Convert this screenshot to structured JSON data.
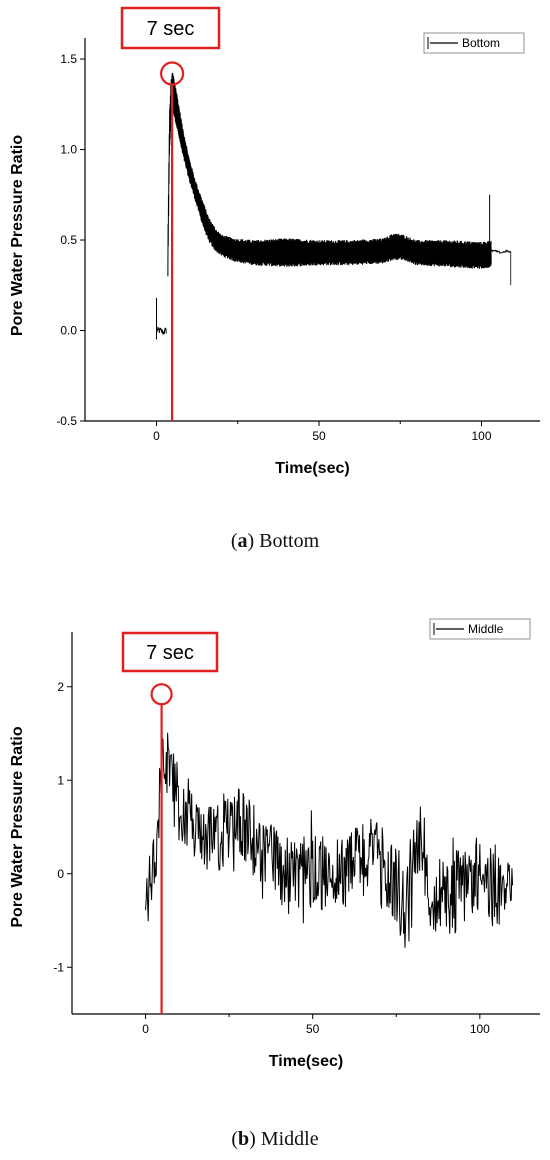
{
  "chart_data": [
    {
      "id": "a",
      "type": "line",
      "title": "",
      "xlabel": "Time(sec)",
      "ylabel": "Pore Water Pressure Ratio",
      "xlim": [
        -22,
        118
      ],
      "ylim": [
        -0.5,
        1.55
      ],
      "xticks": [
        0,
        50,
        100
      ],
      "yticks": [
        -0.5,
        0.0,
        0.5,
        1.0,
        1.5
      ],
      "ytick_labels": [
        "-0.5",
        "0.0",
        "0.5",
        "1.0",
        "1.5"
      ],
      "legend": {
        "position": "top-right",
        "entries": [
          "Bottom"
        ]
      },
      "grid": false,
      "series": [
        {
          "name": "Bottom",
          "color": "#000000",
          "envelope": {
            "x": [
              0,
              1,
              2,
              3,
              3.5,
              4,
              4.5,
              5,
              6,
              8,
              10,
              12,
              14,
              16,
              18,
              20,
              24,
              30,
              40,
              50,
              60,
              70,
              73,
              76,
              80,
              90,
              100,
              103
            ],
            "upper": [
              0.02,
              0.02,
              0.01,
              0.02,
              0.5,
              1.2,
              1.38,
              1.42,
              1.33,
              1.12,
              0.95,
              0.82,
              0.72,
              0.62,
              0.56,
              0.52,
              0.5,
              0.49,
              0.5,
              0.49,
              0.49,
              0.5,
              0.53,
              0.52,
              0.49,
              0.49,
              0.48,
              0.49
            ],
            "lower": [
              -0.02,
              -0.02,
              -0.03,
              -0.02,
              0.3,
              1.0,
              1.15,
              1.22,
              1.15,
              0.98,
              0.84,
              0.72,
              0.6,
              0.5,
              0.45,
              0.42,
              0.39,
              0.37,
              0.36,
              0.37,
              0.37,
              0.38,
              0.4,
              0.4,
              0.37,
              0.36,
              0.35,
              0.36
            ]
          },
          "spikes": [
            {
              "x": 0,
              "y_from": -0.05,
              "y_to": 0.18
            },
            {
              "x": 4.8,
              "y_from": 0.3,
              "y_to": 1.42
            },
            {
              "x": 102.5,
              "y_from": 0.35,
              "y_to": 0.75
            }
          ],
          "tail": {
            "x": [
              103,
              104,
              106,
              108,
              109
            ],
            "y": [
              0.44,
              0.44,
              0.43,
              0.44,
              0.43
            ],
            "end_spike": {
              "x": 109,
              "y_from": 0.25,
              "y_to": 0.44
            }
          }
        }
      ],
      "marker_line": {
        "x": 4.8,
        "color": "#e02020"
      },
      "annotation": {
        "text": "7 sec",
        "circle_at": {
          "x": 4.8,
          "y": 1.42
        }
      }
    },
    {
      "id": "b",
      "type": "line",
      "title": "",
      "xlabel": "Time(sec)",
      "ylabel": "Pore Water Pressure Ratio",
      "xlim": [
        -22,
        118
      ],
      "ylim": [
        -1.5,
        2.5
      ],
      "xticks": [
        0,
        50,
        100
      ],
      "yticks": [
        -1,
        0,
        1,
        2
      ],
      "ytick_labels": [
        "-1",
        "0",
        "1",
        "2"
      ],
      "legend": {
        "position": "top-right",
        "entries": [
          "Middle"
        ]
      },
      "grid": false,
      "series": [
        {
          "name": "Middle",
          "color": "#000000",
          "noise_profile": {
            "x": [
              0,
              2,
              3.5,
              5,
              6,
              8,
              10,
              15,
              20,
              25,
              30,
              35,
              40,
              50,
              60,
              65,
              70,
              75,
              78,
              80,
              82,
              85,
              90,
              95,
              100,
              105,
              110
            ],
            "mean": [
              -0.2,
              0.0,
              0.4,
              1.35,
              1.3,
              0.95,
              0.7,
              0.45,
              0.35,
              0.5,
              0.45,
              0.25,
              0.05,
              0.0,
              0.05,
              0.2,
              0.1,
              -0.1,
              -0.5,
              0.1,
              0.3,
              -0.2,
              -0.3,
              -0.1,
              0.0,
              -0.1,
              -0.3
            ],
            "amp": [
              0.3,
              0.3,
              0.4,
              0.35,
              0.4,
              0.4,
              0.35,
              0.35,
              0.35,
              0.45,
              0.45,
              0.4,
              0.4,
              0.4,
              0.4,
              0.45,
              0.45,
              0.45,
              0.5,
              0.6,
              0.5,
              0.45,
              0.45,
              0.45,
              0.45,
              0.45,
              0.35
            ]
          },
          "sample_step": 0.2
        }
      ],
      "marker_line": {
        "x": 4.8,
        "color": "#e02020"
      },
      "annotation": {
        "text": "7 sec",
        "circle_at": {
          "x": 4.8,
          "y": 1.92
        }
      }
    }
  ],
  "captions": {
    "a": {
      "letter": "a",
      "text": ") Bottom"
    },
    "b": {
      "letter": "b",
      "text": ") Middle"
    }
  }
}
